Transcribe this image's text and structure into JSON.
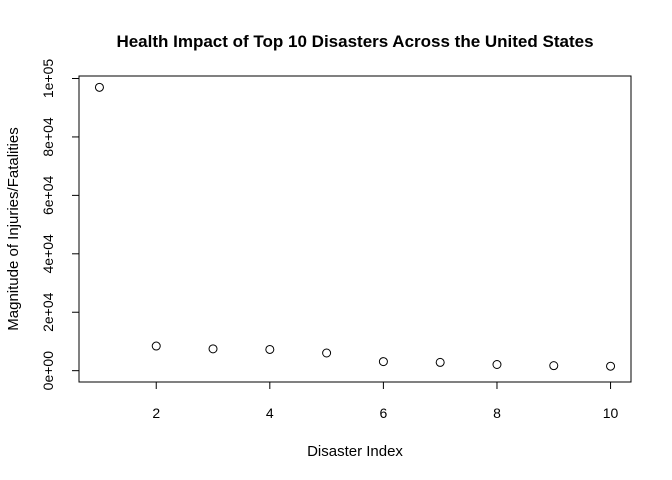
{
  "chart_data": {
    "type": "scatter",
    "title": "Health Impact of Top 10 Disasters Across the United States",
    "xlabel": "Disaster Index",
    "ylabel": "Magnitude of Injuries/Fatalities",
    "x": [
      1,
      2,
      3,
      4,
      5,
      6,
      7,
      8,
      9,
      10
    ],
    "y": [
      96979,
      8428,
      7461,
      7259,
      6046,
      3100,
      2834,
      2111,
      1721,
      1527
    ],
    "xlim": [
      0.64,
      10.36
    ],
    "ylim": [
      -3879,
      100858
    ],
    "x_ticks": [
      2,
      4,
      6,
      8,
      10
    ],
    "x_tick_labels": [
      "2",
      "4",
      "6",
      "8",
      "10"
    ],
    "y_ticks": [
      0,
      20000,
      40000,
      60000,
      80000,
      100000
    ],
    "y_tick_labels": [
      "0e+00",
      "2e+04",
      "4e+04",
      "6e+04",
      "8e+04",
      "1e+05"
    ],
    "marker": "open-circle",
    "grid": false,
    "legend": "none"
  }
}
